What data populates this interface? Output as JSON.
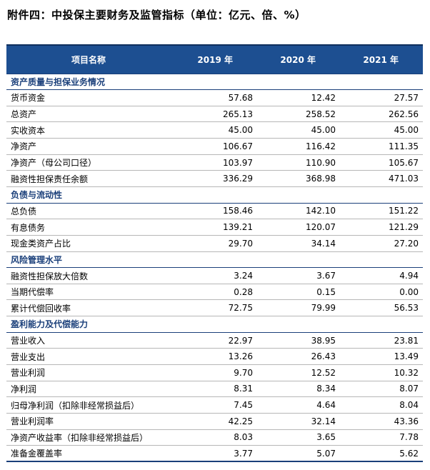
{
  "title": "附件四：中投保主要财务及监管指标（单位：亿元、倍、%）",
  "header": {
    "name_col": "项目名称",
    "years": [
      "2019 年",
      "2020 年",
      "2021 年"
    ]
  },
  "sections": [
    {
      "title": "资产质量与担保业务情况",
      "rows": [
        {
          "label": "货币资金",
          "values": [
            "57.68",
            "12.42",
            "27.57"
          ]
        },
        {
          "label": "总资产",
          "values": [
            "265.13",
            "258.52",
            "262.56"
          ]
        },
        {
          "label": "实收资本",
          "values": [
            "45.00",
            "45.00",
            "45.00"
          ]
        },
        {
          "label": "净资产",
          "values": [
            "106.67",
            "116.42",
            "111.35"
          ]
        },
        {
          "label": "净资产（母公司口径）",
          "values": [
            "103.97",
            "110.90",
            "105.67"
          ]
        },
        {
          "label": "融资性担保责任余额",
          "values": [
            "336.29",
            "368.98",
            "471.03"
          ]
        }
      ]
    },
    {
      "title": "负债与流动性",
      "rows": [
        {
          "label": "总负债",
          "values": [
            "158.46",
            "142.10",
            "151.22"
          ]
        },
        {
          "label": "有息债务",
          "values": [
            "139.21",
            "120.07",
            "121.29"
          ]
        },
        {
          "label": "现金类资产占比",
          "values": [
            "29.70",
            "34.14",
            "27.20"
          ]
        }
      ]
    },
    {
      "title": "风险管理水平",
      "rows": [
        {
          "label": "融资性担保放大倍数",
          "values": [
            "3.24",
            "3.67",
            "4.94"
          ]
        },
        {
          "label": "当期代偿率",
          "values": [
            "0.28",
            "0.15",
            "0.00"
          ]
        },
        {
          "label": "累计代偿回收率",
          "values": [
            "72.75",
            "79.99",
            "56.53"
          ]
        }
      ]
    },
    {
      "title": "盈利能力及代偿能力",
      "rows": [
        {
          "label": "营业收入",
          "values": [
            "22.97",
            "38.95",
            "23.81"
          ]
        },
        {
          "label": "营业支出",
          "values": [
            "13.26",
            "26.43",
            "13.49"
          ]
        },
        {
          "label": "营业利润",
          "values": [
            "9.70",
            "12.52",
            "10.32"
          ]
        },
        {
          "label": "净利润",
          "values": [
            "8.31",
            "8.34",
            "8.07"
          ]
        },
        {
          "label": "归母净利润（扣除非经常损益后）",
          "values": [
            "7.45",
            "4.64",
            "8.04"
          ]
        },
        {
          "label": "营业利润率",
          "values": [
            "42.25",
            "32.14",
            "43.36"
          ]
        },
        {
          "label": "净资产收益率（扣除非经常损益后）",
          "values": [
            "8.03",
            "3.65",
            "7.78"
          ]
        },
        {
          "label": "准备金覆盖率",
          "values": [
            "3.77",
            "5.07",
            "5.62"
          ]
        }
      ]
    }
  ]
}
